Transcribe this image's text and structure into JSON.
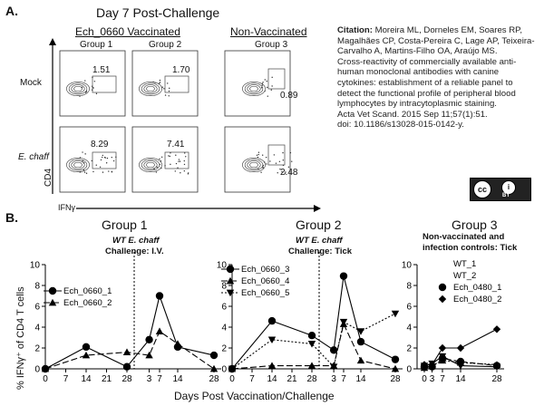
{
  "panel_a": {
    "label": "A.",
    "title": "Day 7 Post-Challenge",
    "vaccinated_header": "Ech_0660 Vaccinated",
    "nonvaccinated_header": "Non-Vaccinated",
    "groups": [
      "Group 1",
      "Group 2",
      "Group 3"
    ],
    "rows": [
      "Mock",
      "E. chaff"
    ],
    "y_axis": "CD4",
    "x_axis": "IFNγ",
    "percentages": {
      "mock": [
        "1.51",
        "1.70",
        "0.89"
      ],
      "echaff": [
        "8.29",
        "7.41",
        "2.48"
      ]
    }
  },
  "citation": {
    "label": "Citation:",
    "authors": " Moreira ML, Dorneles EM, Soares RP, Magalhães CP, Costa-Pereira C, Lage AP, Teixeira-Carvalho A, Martins-Filho OA, Araújo MS.",
    "title": "Cross-reactivity of commercially available anti-human monoclonal antibodies with canine cytokines: establishment of a reliable panel to detect the functional profile of peripheral blood lymphocytes by intracytoplasmic staining.",
    "journal": "Acta Vet Scand. 2015 Sep 11;57(1):51.",
    "doi": "doi: 10.1186/s13028-015-0142-y."
  },
  "license_badge": {
    "cc": "cc",
    "by_symbol": "i",
    "by": "BY"
  },
  "panel_b": {
    "label": "B.",
    "y_axis_label": "% IFNγ⁺ of CD4 T cells",
    "x_axis_label": "Days Post Vaccination/Challenge",
    "groups": [
      {
        "title": "Group 1",
        "challenge_line1": "WT E. chaff",
        "challenge_line2": "Challenge: I.V.",
        "legend": [
          "Ech_0660_1",
          "Ech_0660_2"
        ]
      },
      {
        "title": "Group 2",
        "challenge_line1": "WT E. chaff",
        "challenge_line2": "Challenge: Tick",
        "legend": [
          "Ech_0660_3",
          "Ech_0660_4",
          "Ech_0660_5"
        ]
      },
      {
        "title": "Group 3",
        "challenge_line1": "Non-vaccinated and",
        "challenge_line2": "infection controls: Tick",
        "legend": [
          "WT_1",
          "WT_2",
          "Ech_0480_1",
          "Ech_0480_2"
        ]
      }
    ]
  },
  "chart_data": [
    {
      "type": "line",
      "title": "Group 1",
      "ylabel": "% IFNγ⁺ of CD4 T cells",
      "xlabel": "Days Post Vaccination/Challenge",
      "ylim": [
        0,
        10
      ],
      "yticks": [
        0,
        2,
        4,
        6,
        8,
        10
      ],
      "x_ticks": [
        "0",
        "7",
        "14",
        "21",
        "28",
        "3",
        "7",
        "14",
        "28"
      ],
      "series": [
        {
          "name": "Ech_0660_1",
          "x": [
            0,
            14,
            28,
            3,
            7,
            14,
            28
          ],
          "y": [
            0.0,
            2.1,
            0.2,
            2.8,
            7.0,
            2.1,
            1.3
          ]
        },
        {
          "name": "Ech_0660_2",
          "x": [
            0,
            14,
            28,
            3,
            7,
            14,
            28
          ],
          "y": [
            0.0,
            1.3,
            1.6,
            1.3,
            3.6,
            2.4,
            0.0
          ]
        }
      ]
    },
    {
      "type": "line",
      "title": "Group 2",
      "ylim": [
        0,
        10
      ],
      "yticks": [
        0,
        2,
        4,
        6,
        8,
        10
      ],
      "x_ticks": [
        "0",
        "7",
        "14",
        "21",
        "28",
        "3",
        "7",
        "14",
        "28"
      ],
      "series": [
        {
          "name": "Ech_0660_3",
          "x": [
            0,
            14,
            28,
            3,
            7,
            14,
            28
          ],
          "y": [
            0.0,
            4.6,
            3.2,
            1.8,
            8.9,
            2.6,
            0.9
          ]
        },
        {
          "name": "Ech_0660_4",
          "x": [
            0,
            14,
            28,
            3,
            7,
            14,
            28
          ],
          "y": [
            0.0,
            0.3,
            0.3,
            0.3,
            4.3,
            0.8,
            0.0
          ]
        },
        {
          "name": "Ech_0660_5",
          "x": [
            0,
            14,
            28,
            3,
            7,
            14,
            28
          ],
          "y": [
            0.0,
            2.8,
            2.4,
            0.2,
            4.5,
            3.6,
            5.3
          ]
        }
      ]
    },
    {
      "type": "line",
      "title": "Group 3",
      "ylim": [
        0,
        10
      ],
      "yticks": [
        0,
        2,
        4,
        6,
        8,
        10
      ],
      "x_ticks": [
        "0",
        "3",
        "7",
        "14",
        "28"
      ],
      "series": [
        {
          "name": "WT_1",
          "x": [
            0,
            3,
            7,
            14,
            28
          ],
          "y": [
            0.3,
            0.5,
            1.2,
            0.3,
            0.2
          ]
        },
        {
          "name": "WT_2",
          "x": [
            0,
            3,
            7,
            14,
            28
          ],
          "y": [
            0.1,
            0.3,
            0.8,
            0.6,
            0.4
          ]
        },
        {
          "name": "Ech_0480_1",
          "x": [
            0,
            3,
            7,
            14,
            28
          ],
          "y": [
            0.2,
            0.2,
            1.0,
            0.7,
            0.3
          ]
        },
        {
          "name": "Ech_0480_2",
          "x": [
            0,
            3,
            7,
            14,
            28
          ],
          "y": [
            0.4,
            0.4,
            2.0,
            2.0,
            3.8
          ]
        }
      ]
    }
  ]
}
